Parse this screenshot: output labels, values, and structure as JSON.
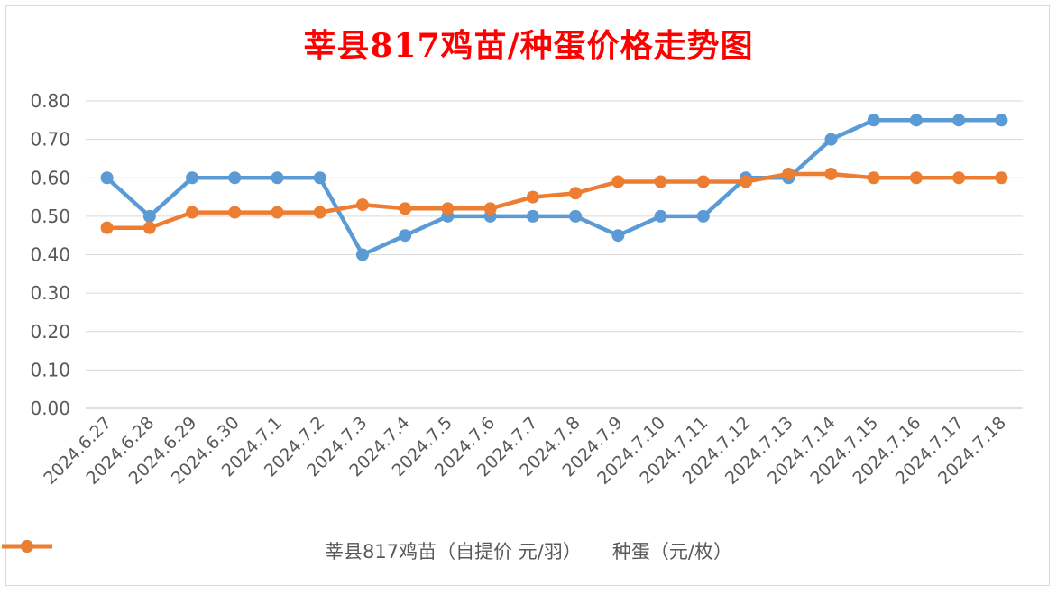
{
  "chart_data": {
    "type": "line",
    "title": "莘县817鸡苗/种蛋价格走势图",
    "title_color": "#ff0000",
    "categories": [
      "2024.6.27",
      "2024.6.28",
      "2024.6.29",
      "2024.6.30",
      "2024.7.1",
      "2024.7.2",
      "2024.7.3",
      "2024.7.4",
      "2024.7.5",
      "2024.7.6",
      "2024.7.7",
      "2024.7.8",
      "2024.7.9",
      "2024.7.10",
      "2024.7.11",
      "2024.7.12",
      "2024.7.13",
      "2024.7.14",
      "2024.7.15",
      "2024.7.16",
      "2024.7.17",
      "2024.7.18"
    ],
    "series": [
      {
        "name": "莘县817鸡苗（自提价 元/羽）",
        "color": "#5b9bd5",
        "values": [
          0.6,
          0.5,
          0.6,
          0.6,
          0.6,
          0.6,
          0.4,
          0.45,
          0.5,
          0.5,
          0.5,
          0.5,
          0.45,
          0.5,
          0.5,
          0.6,
          0.6,
          0.7,
          0.75,
          0.75,
          0.75,
          0.75
        ]
      },
      {
        "name": "种蛋（元/枚）",
        "color": "#ed7d31",
        "values": [
          0.47,
          0.47,
          0.51,
          0.51,
          0.51,
          0.51,
          0.53,
          0.52,
          0.52,
          0.52,
          0.55,
          0.56,
          0.59,
          0.59,
          0.59,
          0.59,
          0.61,
          0.61,
          0.6,
          0.6,
          0.6,
          0.6
        ]
      }
    ],
    "yticks": [
      "0.00",
      "0.10",
      "0.20",
      "0.30",
      "0.40",
      "0.50",
      "0.60",
      "0.70",
      "0.80"
    ],
    "ylim": [
      0,
      0.8
    ],
    "grid": true,
    "legend_position": "bottom"
  }
}
